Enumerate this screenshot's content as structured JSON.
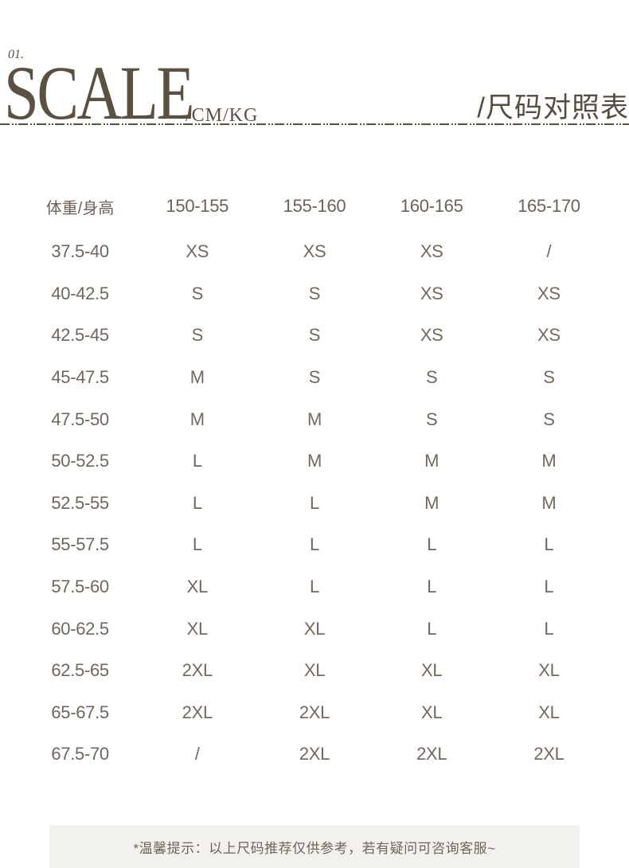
{
  "header": {
    "index_label": "01.",
    "title": "SCALE",
    "unit_suffix": "/CM/KG",
    "title_cn": "/尺码对照表"
  },
  "chart_data": {
    "type": "table",
    "title": "SCALE /CM/KG 尺码对照表",
    "columns": [
      "体重/身高",
      "150-155",
      "155-160",
      "160-165",
      "165-170"
    ],
    "rows": [
      {
        "weight": "37.5-40",
        "sizes": [
          "XS",
          "XS",
          "XS",
          "/"
        ]
      },
      {
        "weight": "40-42.5",
        "sizes": [
          "S",
          "S",
          "XS",
          "XS"
        ]
      },
      {
        "weight": "42.5-45",
        "sizes": [
          "S",
          "S",
          "XS",
          "XS"
        ]
      },
      {
        "weight": "45-47.5",
        "sizes": [
          "M",
          "S",
          "S",
          "S"
        ]
      },
      {
        "weight": "47.5-50",
        "sizes": [
          "M",
          "M",
          "S",
          "S"
        ]
      },
      {
        "weight": "50-52.5",
        "sizes": [
          "L",
          "M",
          "M",
          "M"
        ]
      },
      {
        "weight": "52.5-55",
        "sizes": [
          "L",
          "L",
          "M",
          "M"
        ]
      },
      {
        "weight": "55-57.5",
        "sizes": [
          "L",
          "L",
          "L",
          "L"
        ]
      },
      {
        "weight": "57.5-60",
        "sizes": [
          "XL",
          "L",
          "L",
          "L"
        ]
      },
      {
        "weight": "60-62.5",
        "sizes": [
          "XL",
          "XL",
          "L",
          "L"
        ]
      },
      {
        "weight": "62.5-65",
        "sizes": [
          "2XL",
          "XL",
          "XL",
          "XL"
        ]
      },
      {
        "weight": "65-67.5",
        "sizes": [
          "2XL",
          "2XL",
          "XL",
          "XL"
        ]
      },
      {
        "weight": "67.5-70",
        "sizes": [
          "/",
          "2XL",
          "2XL",
          "2XL"
        ]
      }
    ]
  },
  "footer": {
    "note": "*温馨提示：以上尺码推荐仅供参考，若有疑问可咨询客服~"
  },
  "colors": {
    "brand_brown": "#5a5143",
    "table_text": "#6f675c",
    "footer_background": "#f2f1ee",
    "footer_text": "#6f6559"
  }
}
